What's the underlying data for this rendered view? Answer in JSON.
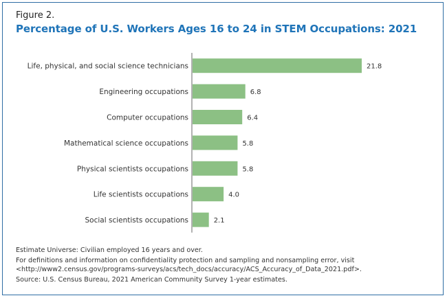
{
  "figure_label": "Figure 2.",
  "chart_data": {
    "type": "bar",
    "orientation": "horizontal",
    "title": "Percentage of U.S. Workers Ages 16 to 24 in STEM Occupations: 2021",
    "categories": [
      "Life, physical, and social science technicians",
      "Engineering occupations",
      "Computer occupations",
      "Mathematical science occupations",
      "Physical scientists occupations",
      "Life scientists occupations",
      "Social scientists occupations"
    ],
    "values": [
      21.8,
      6.8,
      6.4,
      5.8,
      5.8,
      4.0,
      2.1
    ],
    "value_labels": [
      "21.8",
      "6.8",
      "6.4",
      "5.8",
      "5.8",
      "4.0",
      "2.1"
    ],
    "xlabel": "",
    "ylabel": "",
    "xlim": [
      0,
      21.8
    ],
    "grid": false,
    "bar_color": "#8cc084"
  },
  "notes": {
    "universe": "Estimate Universe: Civilian employed 16 years and over.",
    "definitions_line1": "For definitions and information on confidentiality protection and sampling and nonsampling error, visit",
    "definitions_line2": "<http://www2.census.gov/programs-surveys/acs/tech_docs/accuracy/ACS_Accuracy_of_Data_2021.pdf>.",
    "source": "Source: U.S. Census Bureau, 2021 American Community Survey 1-year estimates."
  }
}
